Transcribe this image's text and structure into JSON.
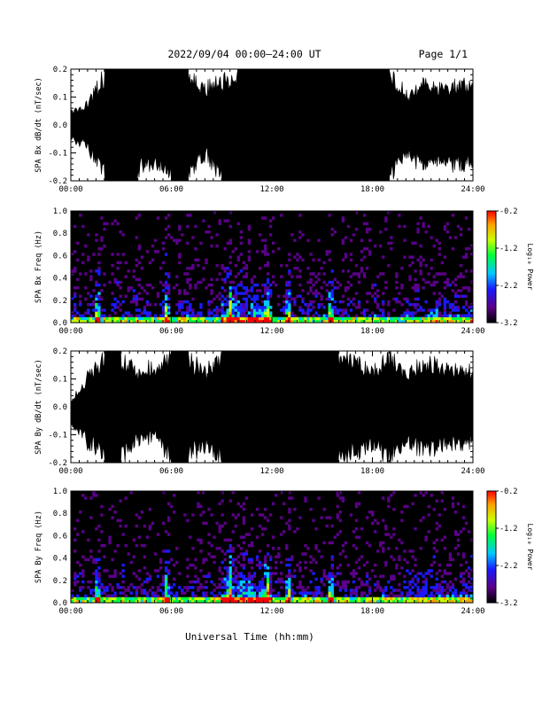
{
  "header": {
    "title": "2022/09/04  00:00–24:00 UT",
    "page": "Page 1/1"
  },
  "xlabel": "Universal Time (hh:mm)",
  "colors": {
    "trace": "#000000",
    "spectrogram_background": "#000000",
    "colorbar": [
      "#000000",
      "#5a0088",
      "#1a1aff",
      "#00c8ff",
      "#00ff40",
      "#c8ff00",
      "#ffa000",
      "#ff0000"
    ]
  },
  "chart_data": [
    {
      "type": "area",
      "ylabel": "SPA Bx dB/dt (nT/sec)",
      "xlim": [
        "00:00",
        "24:00"
      ],
      "ylim": [
        -0.2,
        0.2
      ],
      "x_ticks": [
        "00:00",
        "06:00",
        "12:00",
        "18:00",
        "24:00"
      ],
      "y_ticks": [
        "-0.2",
        "-0.1",
        "0.0",
        "0.1",
        "0.2"
      ],
      "series": [
        {
          "x": [
            "00:00",
            "01:00",
            "02:00",
            "03:00",
            "04:00",
            "05:00",
            "06:00",
            "07:00",
            "08:00",
            "09:00",
            "10:00",
            "11:00",
            "12:00",
            "13:00",
            "14:00",
            "15:00",
            "16:00",
            "17:00",
            "18:00",
            "19:00",
            "20:00",
            "21:00",
            "22:00",
            "23:00",
            "24:00"
          ],
          "upper": [
            0.04,
            0.08,
            0.2,
            0.2,
            0.2,
            0.2,
            0.2,
            0.2,
            0.14,
            0.18,
            0.2,
            0.2,
            0.2,
            0.2,
            0.2,
            0.2,
            0.2,
            0.2,
            0.2,
            0.2,
            0.12,
            0.16,
            0.14,
            0.16,
            0.16
          ],
          "lower": [
            -0.05,
            -0.08,
            -0.2,
            -0.2,
            -0.2,
            -0.14,
            -0.2,
            -0.2,
            -0.12,
            -0.2,
            -0.2,
            -0.2,
            -0.2,
            -0.2,
            -0.2,
            -0.2,
            -0.2,
            -0.2,
            -0.2,
            -0.2,
            -0.12,
            -0.16,
            -0.14,
            -0.16,
            -0.16
          ]
        }
      ]
    },
    {
      "type": "heatmap",
      "ylabel": "SPA Bx Freq (Hz)",
      "xlim": [
        "00:00",
        "24:00"
      ],
      "ylim": [
        0.0,
        1.0
      ],
      "x_ticks": [
        "00:00",
        "06:00",
        "12:00",
        "18:00",
        "24:00"
      ],
      "y_ticks": [
        "0.0",
        "0.2",
        "0.4",
        "0.6",
        "0.8",
        "1.0"
      ],
      "colorbar": {
        "label": "Log₁₀ Power",
        "range": [
          -3.2,
          -0.2
        ],
        "ticks": [
          "-0.2",
          "-1.2",
          "-2.2",
          "-3.2"
        ]
      },
      "peak_times": [
        "01:36",
        "05:42",
        "09:30",
        "11:42",
        "13:00",
        "15:30"
      ]
    },
    {
      "type": "area",
      "ylabel": "SPA By dB/dt (nT/sec)",
      "xlim": [
        "00:00",
        "24:00"
      ],
      "ylim": [
        -0.2,
        0.2
      ],
      "x_ticks": [
        "00:00",
        "06:00",
        "12:00",
        "18:00",
        "24:00"
      ],
      "y_ticks": [
        "-0.2",
        "-0.1",
        "0.0",
        "0.1",
        "0.2"
      ],
      "series": [
        {
          "x": [
            "00:00",
            "01:00",
            "02:00",
            "03:00",
            "04:00",
            "05:00",
            "06:00",
            "07:00",
            "08:00",
            "09:00",
            "10:00",
            "11:00",
            "12:00",
            "13:00",
            "14:00",
            "15:00",
            "16:00",
            "17:00",
            "18:00",
            "19:00",
            "20:00",
            "21:00",
            "22:00",
            "23:00",
            "24:00"
          ],
          "upper": [
            0.0,
            0.12,
            0.2,
            0.2,
            0.14,
            0.16,
            0.2,
            0.2,
            0.14,
            0.2,
            0.2,
            0.2,
            0.2,
            0.2,
            0.2,
            0.2,
            0.2,
            0.18,
            0.14,
            0.2,
            0.12,
            0.18,
            0.16,
            0.14,
            0.14
          ],
          "lower": [
            -0.06,
            -0.14,
            -0.2,
            -0.2,
            -0.14,
            -0.12,
            -0.2,
            -0.2,
            -0.16,
            -0.2,
            -0.2,
            -0.2,
            -0.2,
            -0.2,
            -0.2,
            -0.2,
            -0.2,
            -0.18,
            -0.16,
            -0.2,
            -0.14,
            -0.18,
            -0.16,
            -0.14,
            -0.14
          ]
        }
      ]
    },
    {
      "type": "heatmap",
      "ylabel": "SPA By Freq (Hz)",
      "xlim": [
        "00:00",
        "24:00"
      ],
      "ylim": [
        0.0,
        1.0
      ],
      "x_ticks": [
        "00:00",
        "06:00",
        "12:00",
        "18:00",
        "24:00"
      ],
      "y_ticks": [
        "0.0",
        "0.2",
        "0.4",
        "0.6",
        "0.8",
        "1.0"
      ],
      "colorbar": {
        "label": "Log₁₀ Power",
        "range": [
          -3.2,
          -0.2
        ],
        "ticks": [
          "-0.2",
          "-1.2",
          "-2.2",
          "-3.2"
        ]
      },
      "peak_times": [
        "01:36",
        "05:42",
        "09:30",
        "11:42",
        "13:00",
        "15:30"
      ]
    }
  ]
}
